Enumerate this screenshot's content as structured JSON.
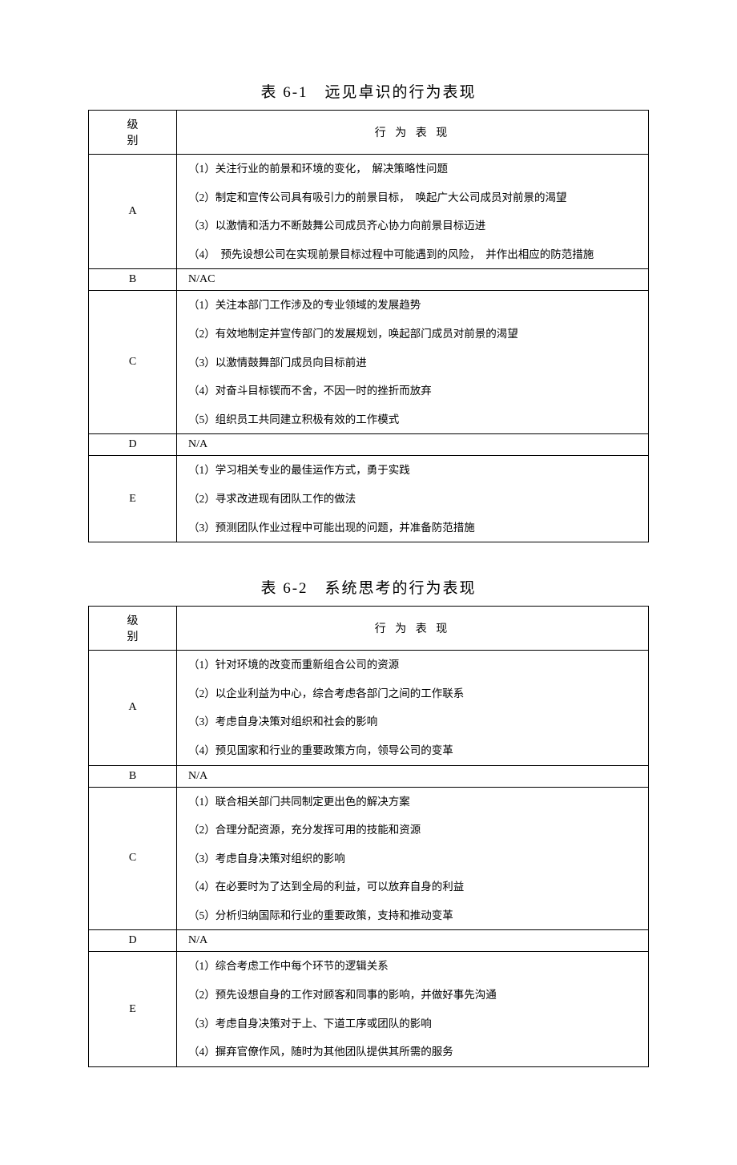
{
  "page": {
    "background_color": "#ffffff",
    "text_color": "#000000",
    "border_color": "#000000"
  },
  "tables": [
    {
      "title": "表 6-1　远见卓识的行为表现",
      "header_level": "级别",
      "header_behavior": "行 为 表 现",
      "rows": [
        {
          "level": "A",
          "items": [
            "（1）关注行业的前景和环境的变化，　解决策略性问题",
            "（2）制定和宣传公司具有吸引力的前景目标，　唤起广大公司成员对前景的渴望",
            "（3）以激情和活力不断鼓舞公司成员齐心协力向前景目标迈进",
            "（4）　预先设想公司在实现前景目标过程中可能遇到的风险，　并作出相应的防范措施"
          ]
        },
        {
          "level": "B",
          "na": "N/AC"
        },
        {
          "level": "C",
          "items": [
            "（1）关注本部门工作涉及的专业领域的发展趋势",
            "（2）有效地制定并宣传部门的发展规划，唤起部门成员对前景的渴望",
            "（3）以激情鼓舞部门成员向目标前进",
            "（4）对奋斗目标锲而不舍，不因一时的挫折而放弃",
            "（5）组织员工共同建立积极有效的工作模式"
          ]
        },
        {
          "level": "D",
          "na": "N/A"
        },
        {
          "level": "E",
          "items": [
            "（1）学习相关专业的最佳运作方式，勇于实践",
            "（2）寻求改进现有团队工作的做法",
            "（3）预测团队作业过程中可能出现的问题，并准备防范措施"
          ]
        }
      ]
    },
    {
      "title": "表 6-2　系统思考的行为表现",
      "header_level": "级别",
      "header_behavior": "行 为 表 现",
      "rows": [
        {
          "level": "A",
          "items": [
            "（1）针对环境的改变而重新组合公司的资源",
            "（2）以企业利益为中心，综合考虑各部门之间的工作联系",
            "（3）考虑自身决策对组织和社会的影响",
            "（4）预见国家和行业的重要政策方向，领导公司的变革"
          ]
        },
        {
          "level": "B",
          "na": "N/A"
        },
        {
          "level": "C",
          "items": [
            "（1）联合相关部门共同制定更出色的解决方案",
            "（2）合理分配资源，充分发挥可用的技能和资源",
            "（3）考虑自身决策对组织的影响",
            "（4）在必要时为了达到全局的利益，可以放弃自身的利益",
            "（5）分析归纳国际和行业的重要政策，支持和推动变革"
          ]
        },
        {
          "level": "D",
          "na": "N/A"
        },
        {
          "level": "E",
          "items": [
            "（1）综合考虑工作中每个环节的逻辑关系",
            "（2）预先设想自身的工作对顾客和同事的影响，并做好事先沟通",
            "（3）考虑自身决策对于上、下道工序或团队的影响",
            "（4）摒弃官僚作风，随时为其他团队提供其所需的服务"
          ]
        }
      ]
    }
  ]
}
